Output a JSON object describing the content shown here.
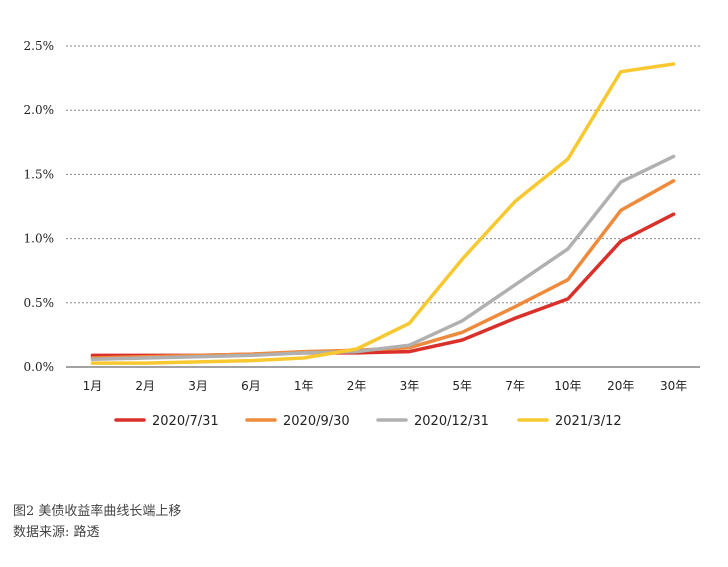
{
  "chart_data": {
    "type": "line",
    "title": "",
    "xlabel": "",
    "ylabel": "",
    "categories": [
      "1月",
      "2月",
      "3月",
      "6月",
      "1年",
      "2年",
      "3年",
      "5年",
      "7年",
      "10年",
      "20年",
      "30年"
    ],
    "ylim": [
      0,
      2.5
    ],
    "y_ticks": [
      "0.0%",
      "0.5%",
      "1.0%",
      "1.5%",
      "2.0%",
      "2.5%"
    ],
    "y_tick_values": [
      0,
      0.5,
      1.0,
      1.5,
      2.0,
      2.5
    ],
    "grid": "horizontal-dotted",
    "legend": "bottom",
    "series": [
      {
        "name": "2020/7/31",
        "color": "#d9302a",
        "values": [
          0.09,
          0.09,
          0.09,
          0.1,
          0.11,
          0.11,
          0.12,
          0.21,
          0.38,
          0.53,
          0.98,
          1.19
        ]
      },
      {
        "name": "2020/9/30",
        "color": "#ee8a3c",
        "values": [
          0.07,
          0.08,
          0.09,
          0.1,
          0.12,
          0.13,
          0.15,
          0.27,
          0.47,
          0.68,
          1.22,
          1.45
        ]
      },
      {
        "name": "2020/12/31",
        "color": "#b0b0b0",
        "values": [
          0.06,
          0.07,
          0.08,
          0.09,
          0.11,
          0.12,
          0.17,
          0.36,
          0.64,
          0.92,
          1.44,
          1.64
        ]
      },
      {
        "name": "2021/3/12",
        "color": "#f7c830",
        "values": [
          0.03,
          0.03,
          0.04,
          0.05,
          0.07,
          0.14,
          0.34,
          0.84,
          1.29,
          1.62,
          2.3,
          2.36
        ]
      }
    ]
  },
  "caption": {
    "figure": "图2 美债收益率曲线长端上移",
    "source": "数据来源: 路透"
  }
}
